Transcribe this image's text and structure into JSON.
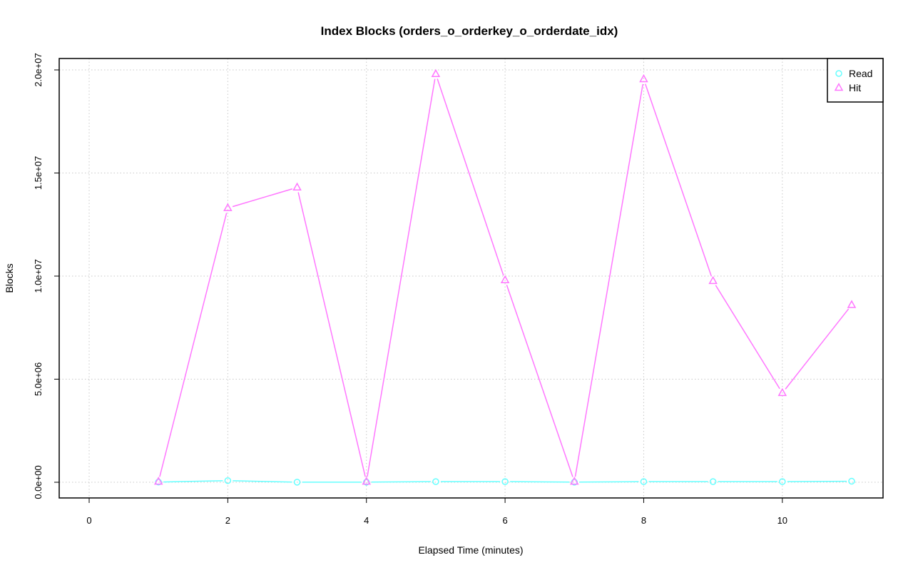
{
  "chart_data": {
    "type": "line",
    "title": "Index Blocks (orders_o_orderkey_o_orderdate_idx)",
    "xlabel": "Elapsed Time (minutes)",
    "ylabel": "Blocks",
    "xlim": [
      0,
      11
    ],
    "ylim": [
      0,
      20000000
    ],
    "x_ticks": [
      0,
      2,
      4,
      6,
      8,
      10
    ],
    "x_tick_labels": [
      "0",
      "2",
      "4",
      "6",
      "8",
      "10"
    ],
    "y_ticks": [
      0,
      5000000,
      10000000,
      15000000,
      20000000
    ],
    "y_tick_labels": [
      "0.0e+00",
      "5.0e+06",
      "1.0e+07",
      "1.5e+07",
      "2.0e+07"
    ],
    "grid": true,
    "legend_position": "top-right",
    "x": [
      1,
      2,
      3,
      4,
      5,
      6,
      7,
      8,
      9,
      10,
      11
    ],
    "series": [
      {
        "name": "Read",
        "color": "#66ffff",
        "marker": "circle",
        "values": [
          10000,
          80000,
          5000,
          5000,
          30000,
          30000,
          5000,
          30000,
          30000,
          30000,
          50000
        ]
      },
      {
        "name": "Hit",
        "color": "#ff77ff",
        "marker": "triangle",
        "values": [
          30000,
          13300000,
          14300000,
          30000,
          19800000,
          9800000,
          30000,
          19550000,
          9760000,
          4330000,
          8600000
        ]
      }
    ]
  }
}
